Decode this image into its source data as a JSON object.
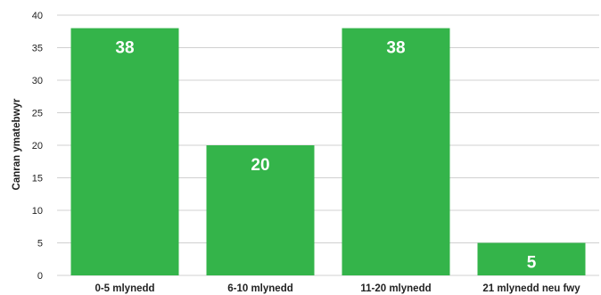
{
  "chart_data": {
    "type": "bar",
    "ylabel": "Canran ymatebwyr",
    "xlabel": "",
    "categories": [
      "0-5 mlynedd",
      "6-10 mlynedd",
      "11-20 mlynedd",
      "21 mlynedd neu fwy"
    ],
    "values": [
      38,
      20,
      38,
      5
    ],
    "value_labels": [
      "38",
      "20",
      "38",
      "5"
    ],
    "ylim": [
      0,
      40
    ],
    "yticks": [
      "0",
      "5",
      "10",
      "15",
      "20",
      "25",
      "30",
      "35",
      "40"
    ],
    "grid": true,
    "bar_color": "#34b44a",
    "value_label_color": "#ffffff"
  }
}
